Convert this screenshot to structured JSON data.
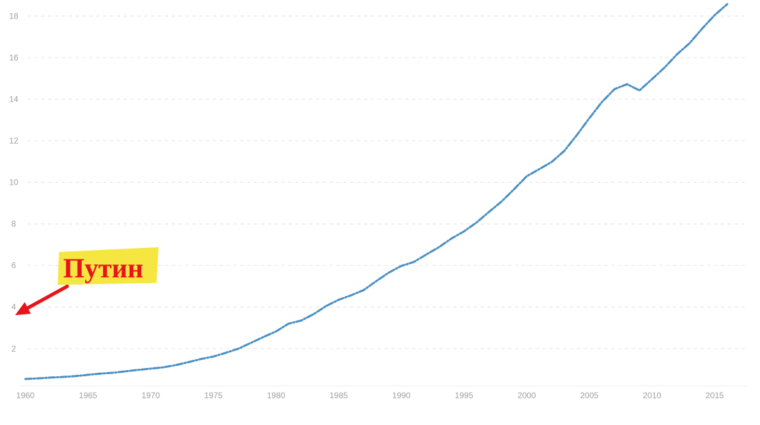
{
  "chart_data": {
    "type": "line",
    "title": "",
    "xlabel": "",
    "ylabel": "",
    "x": [
      1960,
      1961,
      1962,
      1963,
      1964,
      1965,
      1966,
      1967,
      1968,
      1969,
      1970,
      1971,
      1972,
      1973,
      1974,
      1975,
      1976,
      1977,
      1978,
      1979,
      1980,
      1981,
      1982,
      1983,
      1984,
      1985,
      1986,
      1987,
      1988,
      1989,
      1990,
      1991,
      1992,
      1993,
      1994,
      1995,
      1996,
      1997,
      1998,
      1999,
      2000,
      2001,
      2002,
      2003,
      2004,
      2005,
      2006,
      2007,
      2008,
      2009,
      2010,
      2011,
      2012,
      2013,
      2014,
      2015,
      2016
    ],
    "series": [
      {
        "color": "#4a90c4",
        "values": [
          0.54,
          0.57,
          0.61,
          0.64,
          0.68,
          0.74,
          0.8,
          0.84,
          0.91,
          0.98,
          1.04,
          1.1,
          1.21,
          1.35,
          1.5,
          1.62,
          1.8,
          2.0,
          2.28,
          2.56,
          2.83,
          3.2,
          3.35,
          3.66,
          4.05,
          4.35,
          4.57,
          4.82,
          5.25,
          5.66,
          5.98,
          6.17,
          6.53,
          6.88,
          7.3,
          7.64,
          8.07,
          8.58,
          9.08,
          9.67,
          10.29,
          10.63,
          10.98,
          11.51,
          12.27,
          13.09,
          13.86,
          14.48,
          14.72,
          14.42,
          14.96,
          15.52,
          16.16,
          16.69,
          17.39,
          18.04,
          18.57
        ]
      }
    ],
    "x_ticks": [
      "1960",
      "1965",
      "1970",
      "1975",
      "1980",
      "1985",
      "1990",
      "1995",
      "2000",
      "2005",
      "2010",
      "2015"
    ],
    "y_ticks": [
      "2",
      "4",
      "6",
      "8",
      "10",
      "12",
      "14",
      "16",
      "18"
    ],
    "xlim": [
      1960,
      2016.8
    ],
    "ylim": [
      0,
      18.8
    ],
    "grid": true,
    "grid_style": "dashed",
    "legend": "none",
    "annotation": {
      "text": "Путин",
      "text_color": "#e8141c",
      "highlight_color": "#f5e642",
      "arrow_color": "#e8141c",
      "points_to_y": 3.6
    }
  }
}
